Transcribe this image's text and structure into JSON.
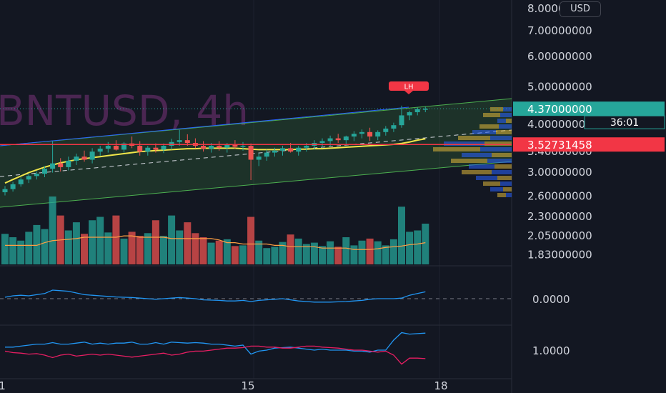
{
  "chart_data": {
    "type": "candlestick",
    "symbol_watermark": "BNTUSD, 4h",
    "currency_button": "USD",
    "x_tick_labels": [
      "1",
      "15",
      "18"
    ],
    "price_axis": {
      "labels": [
        "8.00000000",
        "7.00000000",
        "6.00000000",
        "5.00000000",
        "4.00000000",
        "3.40000000",
        "3.00000000",
        "2.60000000",
        "2.30000000",
        "2.05000000",
        "1.83000000"
      ],
      "scale": "log",
      "range": [
        1.78,
        8.1
      ]
    },
    "price_labels": {
      "last_price": "4.37000000",
      "countdown": "36:01",
      "horizontal_level": "3.52731458"
    },
    "annotation": "LH",
    "candles": [
      [
        2.65,
        2.75,
        2.6,
        2.7
      ],
      [
        2.7,
        2.82,
        2.66,
        2.78
      ],
      [
        2.78,
        2.9,
        2.74,
        2.86
      ],
      [
        2.86,
        2.96,
        2.8,
        2.92
      ],
      [
        2.92,
        3.0,
        2.86,
        2.96
      ],
      [
        2.96,
        3.1,
        2.9,
        3.05
      ],
      [
        3.05,
        3.6,
        2.98,
        3.15
      ],
      [
        3.15,
        3.25,
        3.0,
        3.08
      ],
      [
        3.08,
        3.28,
        3.02,
        3.2
      ],
      [
        3.2,
        3.34,
        3.12,
        3.28
      ],
      [
        3.28,
        3.4,
        3.18,
        3.22
      ],
      [
        3.22,
        3.45,
        3.15,
        3.38
      ],
      [
        3.38,
        3.5,
        3.3,
        3.44
      ],
      [
        3.44,
        3.58,
        3.36,
        3.5
      ],
      [
        3.5,
        3.62,
        3.4,
        3.42
      ],
      [
        3.42,
        3.58,
        3.36,
        3.55
      ],
      [
        3.55,
        3.7,
        3.45,
        3.5
      ],
      [
        3.5,
        3.6,
        3.3,
        3.38
      ],
      [
        3.38,
        3.5,
        3.3,
        3.46
      ],
      [
        3.46,
        3.55,
        3.36,
        3.42
      ],
      [
        3.42,
        3.55,
        3.35,
        3.5
      ],
      [
        3.5,
        3.65,
        3.42,
        3.58
      ],
      [
        3.58,
        3.85,
        3.5,
        3.62
      ],
      [
        3.62,
        3.75,
        3.5,
        3.56
      ],
      [
        3.56,
        3.66,
        3.45,
        3.5
      ],
      [
        3.5,
        3.6,
        3.38,
        3.44
      ],
      [
        3.44,
        3.56,
        3.36,
        3.5
      ],
      [
        3.5,
        3.6,
        3.4,
        3.46
      ],
      [
        3.46,
        3.56,
        3.36,
        3.52
      ],
      [
        3.52,
        3.62,
        3.44,
        3.48
      ],
      [
        3.48,
        3.58,
        3.4,
        3.5
      ],
      [
        3.5,
        3.55,
        2.85,
        3.22
      ],
      [
        3.22,
        3.35,
        3.1,
        3.28
      ],
      [
        3.28,
        3.42,
        3.2,
        3.36
      ],
      [
        3.36,
        3.46,
        3.28,
        3.4
      ],
      [
        3.4,
        3.5,
        3.3,
        3.45
      ],
      [
        3.45,
        3.56,
        3.36,
        3.38
      ],
      [
        3.38,
        3.5,
        3.3,
        3.46
      ],
      [
        3.46,
        3.56,
        3.38,
        3.5
      ],
      [
        3.5,
        3.62,
        3.42,
        3.56
      ],
      [
        3.56,
        3.66,
        3.46,
        3.6
      ],
      [
        3.6,
        3.72,
        3.5,
        3.66
      ],
      [
        3.66,
        3.76,
        3.56,
        3.62
      ],
      [
        3.62,
        3.72,
        3.52,
        3.7
      ],
      [
        3.7,
        3.82,
        3.6,
        3.76
      ],
      [
        3.76,
        3.86,
        3.66,
        3.8
      ],
      [
        3.8,
        3.9,
        3.6,
        3.7
      ],
      [
        3.7,
        3.84,
        3.62,
        3.8
      ],
      [
        3.8,
        3.94,
        3.72,
        3.88
      ],
      [
        3.88,
        4.02,
        3.8,
        3.96
      ],
      [
        3.96,
        4.45,
        3.9,
        4.2
      ],
      [
        4.2,
        4.32,
        4.08,
        4.28
      ],
      [
        4.28,
        4.4,
        4.2,
        4.36
      ],
      [
        4.36,
        4.42,
        4.28,
        4.37
      ]
    ],
    "volume": [
      45,
      40,
      35,
      48,
      58,
      52,
      100,
      72,
      50,
      62,
      45,
      65,
      70,
      47,
      72,
      38,
      48,
      42,
      46,
      65,
      42,
      72,
      50,
      62,
      46,
      40,
      32,
      35,
      37,
      27,
      28,
      70,
      35,
      24,
      26,
      33,
      44,
      38,
      30,
      32,
      27,
      34,
      26,
      40,
      28,
      35,
      38,
      34,
      28,
      37,
      85,
      48,
      50,
      60
    ],
    "volume_ma": [
      28,
      28,
      28,
      28,
      28,
      32,
      35,
      36,
      37,
      38,
      40,
      40,
      40,
      40,
      40,
      42,
      42,
      40,
      40,
      40,
      40,
      38,
      38,
      38,
      38,
      38,
      38,
      36,
      32,
      32,
      30,
      30,
      30,
      30,
      28,
      28,
      26,
      26,
      26,
      26,
      24,
      24,
      24,
      24,
      22,
      22,
      22,
      23,
      25,
      26,
      27,
      29,
      30,
      32
    ],
    "moving_average": [
      2.8,
      2.86,
      2.92,
      2.98,
      3.03,
      3.08,
      3.12,
      3.16,
      3.19,
      3.22,
      3.24,
      3.26,
      3.28,
      3.3,
      3.32,
      3.34,
      3.36,
      3.38,
      3.39,
      3.4,
      3.41,
      3.42,
      3.43,
      3.44,
      3.44,
      3.45,
      3.45,
      3.45,
      3.45,
      3.45,
      3.44,
      3.43,
      3.42,
      3.42,
      3.42,
      3.42,
      3.42,
      3.43,
      3.43,
      3.44,
      3.44,
      3.45,
      3.46,
      3.47,
      3.48,
      3.49,
      3.5,
      3.51,
      3.52,
      3.53,
      3.55,
      3.58,
      3.62,
      3.65
    ],
    "oscillator_1": {
      "zero_label": "0.0000",
      "values": [
        0.05,
        0.1,
        0.12,
        0.1,
        0.14,
        0.18,
        0.3,
        0.28,
        0.26,
        0.2,
        0.14,
        0.12,
        0.1,
        0.08,
        0.06,
        0.05,
        0.04,
        0.02,
        0.0,
        -0.02,
        0.0,
        0.02,
        0.04,
        0.02,
        0.0,
        -0.04,
        -0.05,
        -0.06,
        -0.08,
        -0.08,
        -0.06,
        -0.1,
        -0.06,
        -0.04,
        -0.02,
        0.0,
        -0.04,
        -0.08,
        -0.1,
        -0.12,
        -0.12,
        -0.12,
        -0.11,
        -0.1,
        -0.08,
        -0.06,
        -0.02,
        0.0,
        0.0,
        0.0,
        0.02,
        0.12,
        0.18,
        0.24
      ]
    },
    "oscillator_2": {
      "level_label": "1.0000",
      "blue": [
        1.06,
        1.06,
        1.08,
        1.1,
        1.12,
        1.12,
        1.15,
        1.12,
        1.12,
        1.14,
        1.16,
        1.12,
        1.14,
        1.12,
        1.14,
        1.14,
        1.16,
        1.12,
        1.12,
        1.15,
        1.12,
        1.16,
        1.15,
        1.14,
        1.15,
        1.14,
        1.12,
        1.12,
        1.1,
        1.08,
        1.1,
        0.92,
        0.98,
        1.0,
        1.04,
        1.05,
        1.06,
        1.04,
        1.02,
        1.0,
        1.02,
        1.0,
        1.0,
        1.0,
        0.98,
        0.98,
        0.96,
        1.0,
        1.0,
        1.2,
        1.35,
        1.32,
        1.33,
        1.34
      ],
      "red": [
        0.98,
        0.95,
        0.94,
        0.92,
        0.93,
        0.9,
        0.85,
        0.9,
        0.92,
        0.88,
        0.9,
        0.92,
        0.9,
        0.92,
        0.9,
        0.88,
        0.86,
        0.88,
        0.9,
        0.92,
        0.94,
        0.9,
        0.92,
        0.96,
        0.98,
        0.98,
        1.0,
        1.02,
        1.04,
        1.04,
        1.05,
        1.08,
        1.08,
        1.06,
        1.06,
        1.04,
        1.04,
        1.06,
        1.08,
        1.08,
        1.06,
        1.05,
        1.04,
        1.02,
        1.0,
        1.0,
        0.98,
        0.96,
        0.98,
        0.9,
        0.72,
        0.84,
        0.84,
        0.83
      ]
    },
    "colors": {
      "background": "#131722",
      "up": "#26a69a",
      "down": "#ef5350",
      "last_price": "#26a69a",
      "level_line": "#f23645",
      "moving_average": "#f0e64a",
      "volume_ma": "#ff9f43",
      "channel_fill": "#4caf50",
      "channel_line": "#2962ff",
      "oscillator_blue": "#2196f3",
      "oscillator_red": "#e91e63",
      "axis_text": "#d1d4dc",
      "grid": "#1e222d",
      "watermark": "#7a2a7a"
    }
  }
}
